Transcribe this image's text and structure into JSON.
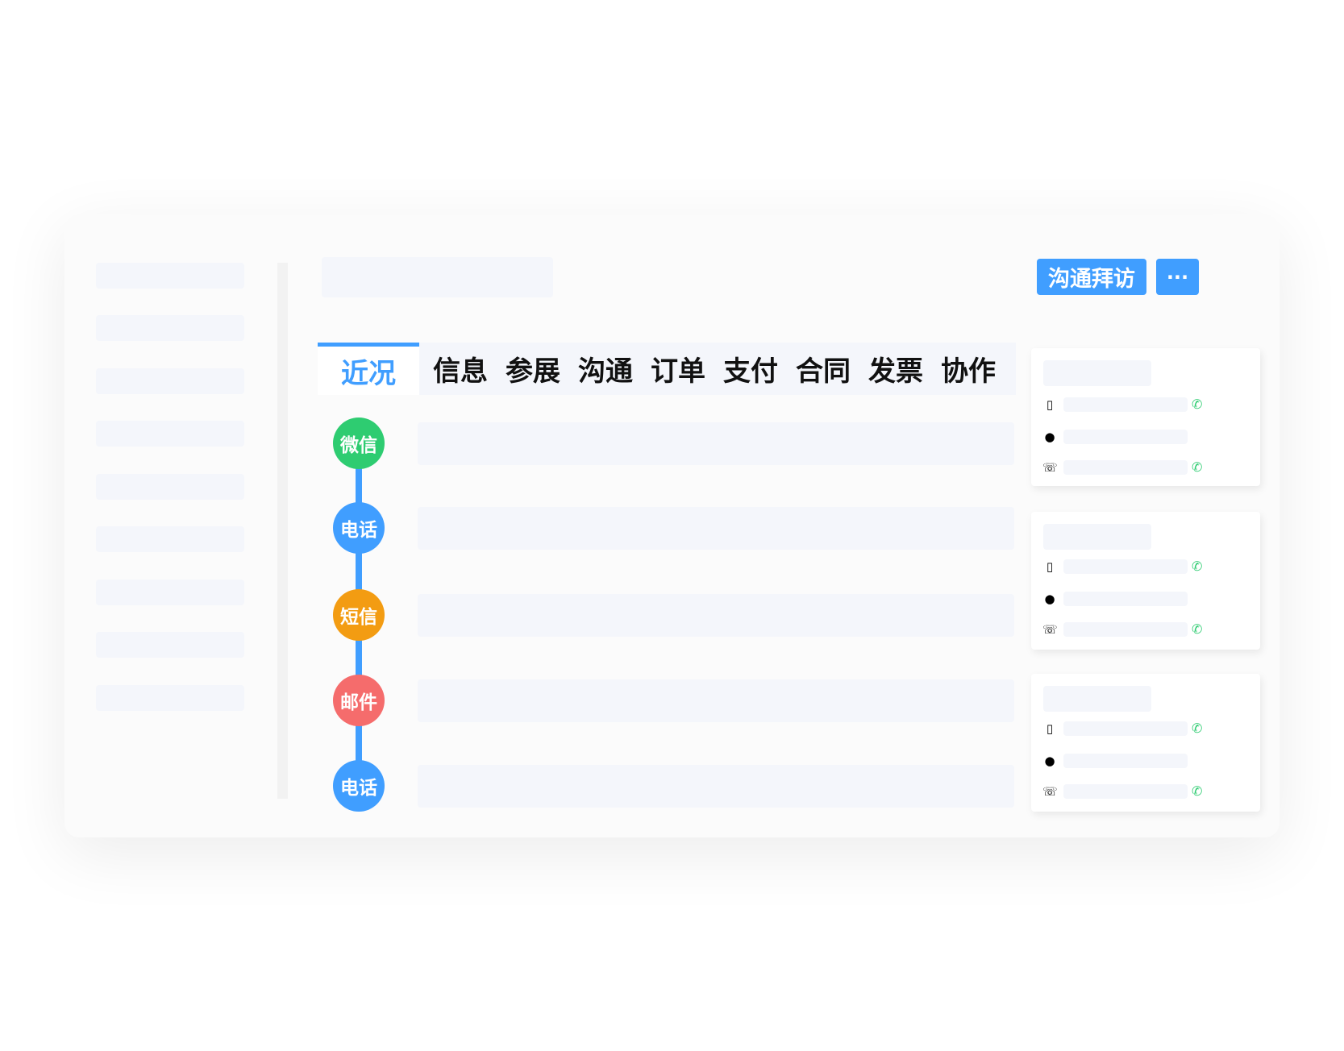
{
  "header": {
    "visit_button": "沟通拜访",
    "more_button": "···"
  },
  "tabs": [
    {
      "label": "近况",
      "active": true
    },
    {
      "label": "信息"
    },
    {
      "label": "参展"
    },
    {
      "label": "沟通"
    },
    {
      "label": "订单"
    },
    {
      "label": "支付"
    },
    {
      "label": "合同"
    },
    {
      "label": "发票"
    },
    {
      "label": "协作"
    }
  ],
  "timeline": [
    {
      "label": "微信",
      "color": "#2ecc71"
    },
    {
      "label": "电话",
      "color": "#409eff"
    },
    {
      "label": "短信",
      "color": "#f39c12"
    },
    {
      "label": "邮件",
      "color": "#f56c6c"
    },
    {
      "label": "电话",
      "color": "#409eff"
    }
  ],
  "contact_icons": {
    "mobile": "mobile-icon",
    "wechat": "wechat-icon",
    "landline": "landline-icon",
    "call": "phone-call-icon"
  },
  "colors": {
    "accent": "#409eff",
    "call": "#2ecc71"
  }
}
